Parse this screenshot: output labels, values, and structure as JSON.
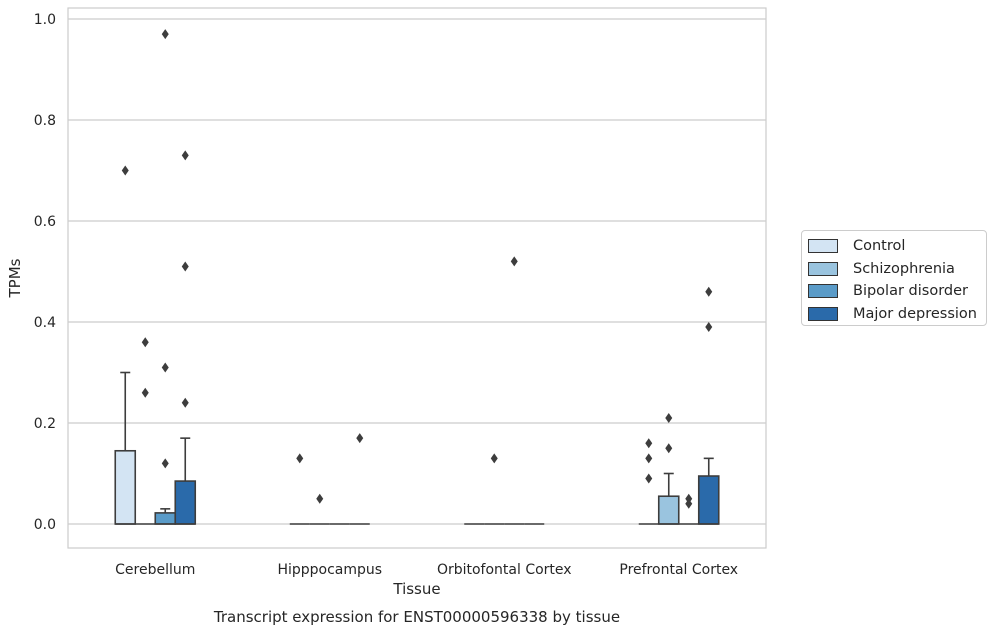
{
  "chart_data": {
    "type": "box",
    "title": "Transcript expression for ENST00000596338 by tissue",
    "xlabel": "Tissue",
    "ylabel": "TPMs",
    "ylim": [
      -0.05,
      1.02
    ],
    "yticks": [
      "0.0",
      "0.2",
      "0.4",
      "0.6",
      "0.8",
      "1.0"
    ],
    "ytick_values": [
      0.0,
      0.2,
      0.4,
      0.6,
      0.8,
      1.0
    ],
    "grid": true,
    "legend_position": "right",
    "categories": [
      "Cerebellum",
      "Hipppocampus",
      "Orbitofontal Cortex",
      "Prefrontal Cortex"
    ],
    "series": [
      {
        "name": "Control",
        "color": "#d3e4f3",
        "boxes": [
          {
            "q1": 0.0,
            "median": 0.0,
            "q3": 0.145,
            "whisker_low": 0.0,
            "whisker_high": 0.3,
            "outliers": [
              0.7
            ]
          },
          {
            "q1": 0.0,
            "median": 0.0,
            "q3": 0.0,
            "whisker_low": 0.0,
            "whisker_high": 0.0,
            "outliers": [
              0.13
            ]
          },
          {
            "q1": 0.0,
            "median": 0.0,
            "q3": 0.0,
            "whisker_low": 0.0,
            "whisker_high": 0.0,
            "outliers": []
          },
          {
            "q1": 0.0,
            "median": 0.0,
            "q3": 0.0,
            "whisker_low": 0.0,
            "whisker_high": 0.0,
            "outliers": [
              0.09,
              0.13,
              0.16
            ]
          }
        ]
      },
      {
        "name": "Schizophrenia",
        "color": "#9ac4df",
        "boxes": [
          {
            "q1": 0.0,
            "median": 0.0,
            "q3": 0.0,
            "whisker_low": 0.0,
            "whisker_high": 0.0,
            "outliers": [
              0.26,
              0.36
            ]
          },
          {
            "q1": 0.0,
            "median": 0.0,
            "q3": 0.0,
            "whisker_low": 0.0,
            "whisker_high": 0.0,
            "outliers": [
              0.05
            ]
          },
          {
            "q1": 0.0,
            "median": 0.0,
            "q3": 0.0,
            "whisker_low": 0.0,
            "whisker_high": 0.0,
            "outliers": [
              0.13
            ]
          },
          {
            "q1": 0.0,
            "median": 0.0,
            "q3": 0.055,
            "whisker_low": 0.0,
            "whisker_high": 0.1,
            "outliers": [
              0.15,
              0.21
            ]
          }
        ]
      },
      {
        "name": "Bipolar disorder",
        "color": "#5a9bc8",
        "boxes": [
          {
            "q1": 0.0,
            "median": 0.0,
            "q3": 0.022,
            "whisker_low": 0.0,
            "whisker_high": 0.03,
            "outliers": [
              0.12,
              0.31,
              0.97
            ]
          },
          {
            "q1": 0.0,
            "median": 0.0,
            "q3": 0.0,
            "whisker_low": 0.0,
            "whisker_high": 0.0,
            "outliers": []
          },
          {
            "q1": 0.0,
            "median": 0.0,
            "q3": 0.0,
            "whisker_low": 0.0,
            "whisker_high": 0.0,
            "outliers": [
              0.52
            ]
          },
          {
            "q1": 0.0,
            "median": 0.0,
            "q3": 0.0,
            "whisker_low": 0.0,
            "whisker_high": 0.0,
            "outliers": [
              0.04,
              0.05
            ]
          }
        ]
      },
      {
        "name": "Major depression",
        "color": "#2a6aaa",
        "boxes": [
          {
            "q1": 0.0,
            "median": 0.0,
            "q3": 0.085,
            "whisker_low": 0.0,
            "whisker_high": 0.17,
            "outliers": [
              0.24,
              0.51,
              0.73
            ]
          },
          {
            "q1": 0.0,
            "median": 0.0,
            "q3": 0.0,
            "whisker_low": 0.0,
            "whisker_high": 0.0,
            "outliers": [
              0.17
            ]
          },
          {
            "q1": 0.0,
            "median": 0.0,
            "q3": 0.0,
            "whisker_low": 0.0,
            "whisker_high": 0.0,
            "outliers": []
          },
          {
            "q1": 0.0,
            "median": 0.0,
            "q3": 0.095,
            "whisker_low": 0.0,
            "whisker_high": 0.13,
            "outliers": [
              0.39,
              0.46
            ]
          }
        ]
      }
    ]
  }
}
